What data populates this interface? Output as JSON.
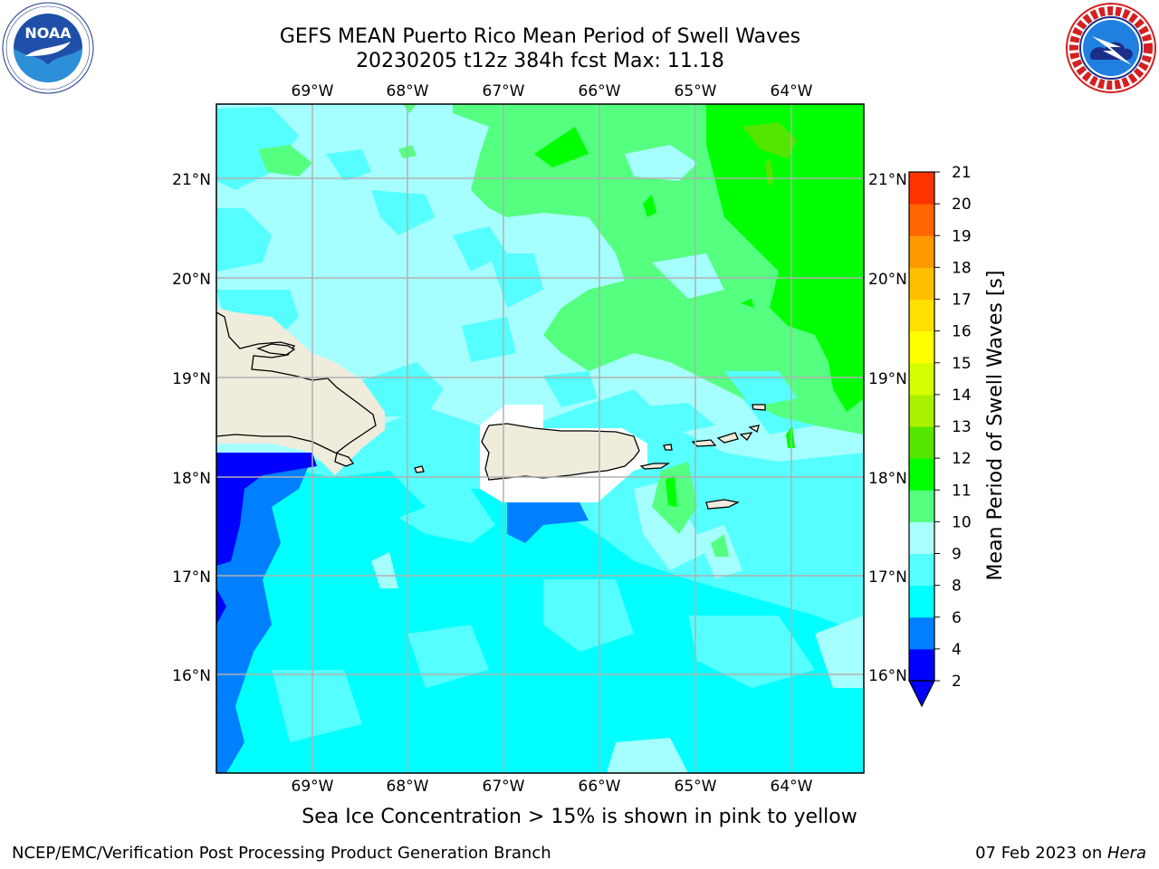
{
  "title": {
    "line1": "GEFS MEAN Puerto Rico Mean Period of Swell Waves",
    "line2": "20230205 t12z 384h fcst   Max: 11.18"
  },
  "logos": {
    "left": {
      "icon": "noaa-logo",
      "text": "NOAA",
      "ring_text": "NATIONAL OCEANIC AND ATMOSPHERIC ADMINISTRATION · U.S. DEPARTMENT OF COMMERCE"
    },
    "right": {
      "icon": "nws-logo",
      "ring_text": "NATIONAL WEATHER SERVICE"
    }
  },
  "map": {
    "lon_labels": [
      "69°W",
      "68°W",
      "67°W",
      "66°W",
      "65°W",
      "64°W"
    ],
    "lat_labels": [
      "21°N",
      "20°N",
      "19°N",
      "18°N",
      "17°N",
      "16°N"
    ],
    "gridlines": true,
    "land_color": "#efecdc",
    "ocean_base_color": "#a6ffff"
  },
  "colorbar": {
    "label": "Mean Period of Swell Waves [s]",
    "ticks": [
      "2",
      "4",
      "6",
      "8",
      "9",
      "10",
      "11",
      "12",
      "13",
      "14",
      "15",
      "16",
      "17",
      "18",
      "19",
      "20",
      "21"
    ],
    "colors": [
      "#0000ff",
      "#0080ff",
      "#00ffff",
      "#55ffff",
      "#aaffff",
      "#55ff80",
      "#00ff00",
      "#55e600",
      "#aaf000",
      "#d4ff00",
      "#ffff00",
      "#ffe000",
      "#ffbf00",
      "#ff9900",
      "#ff6600",
      "#ff3300"
    ],
    "extend_color": "#0000ff"
  },
  "caption": "Sea Ice Concentration > 15% is shown in pink to yellow",
  "footer": {
    "left": "NCEP/EMC/Verification Post Processing Product Generation Branch",
    "right_prefix": "07 Feb 2023 on ",
    "right_italic": "Hera"
  }
}
